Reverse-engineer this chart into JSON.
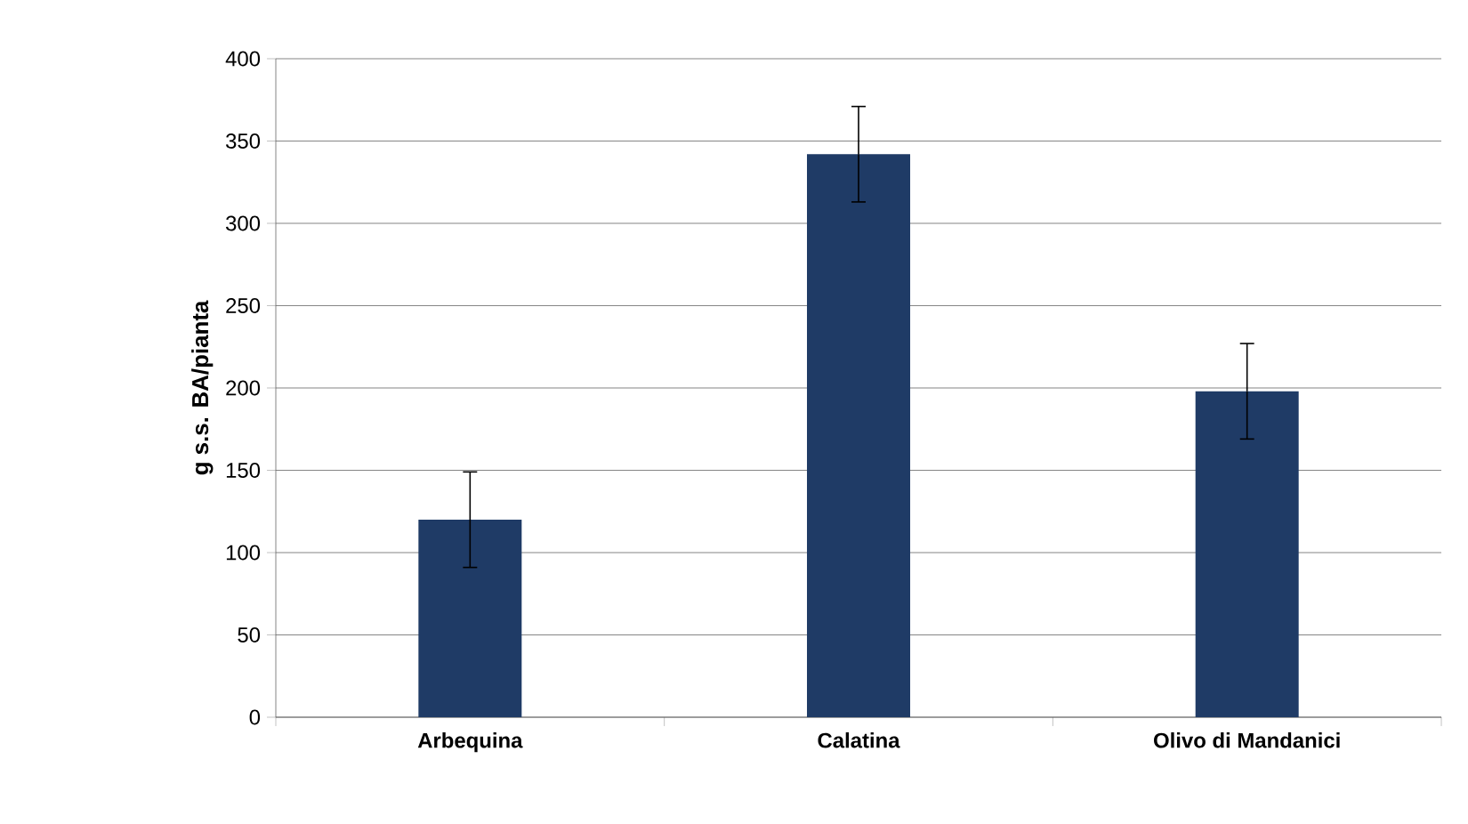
{
  "chart_data": {
    "type": "bar",
    "ylabel": "g s.s. BA/pianta",
    "categories": [
      "Arbequina",
      "Calatina",
      "Olivo di Mandanici"
    ],
    "values": [
      120,
      342,
      198
    ],
    "errors": [
      29,
      29,
      29
    ],
    "color": "#1f3b66",
    "ylim": [
      0,
      400
    ],
    "yticks": [
      0,
      50,
      100,
      150,
      200,
      250,
      300,
      350,
      400
    ],
    "grid": "y"
  }
}
